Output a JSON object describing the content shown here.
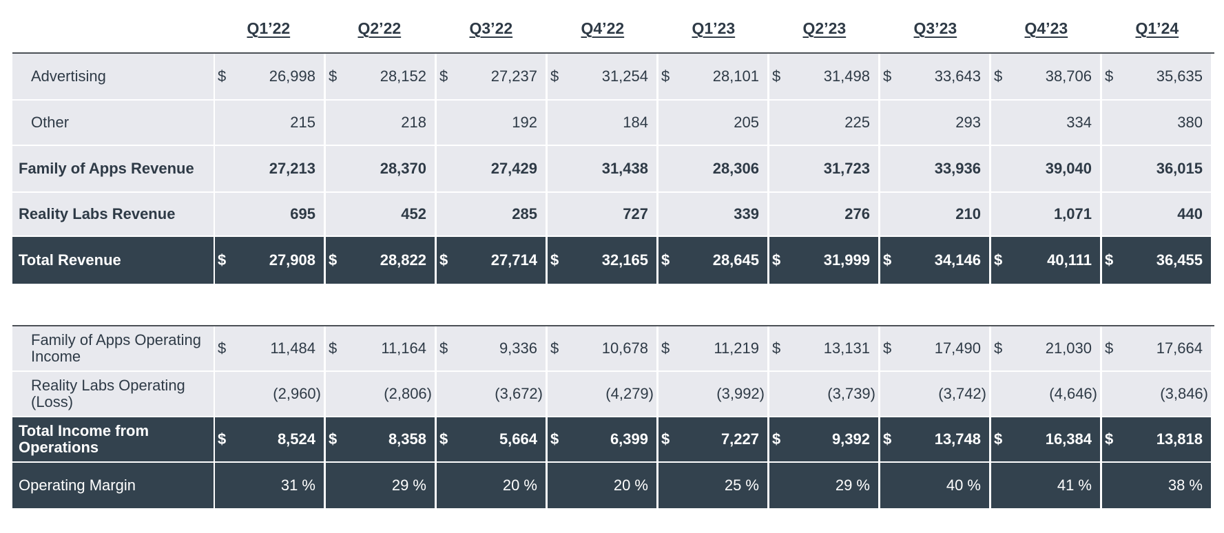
{
  "quarters": [
    "Q1’22",
    "Q2’22",
    "Q3’22",
    "Q4’22",
    "Q1’23",
    "Q2’23",
    "Q3’23",
    "Q4’23",
    "Q1’24"
  ],
  "currency_symbol": "$",
  "revenue_table": {
    "rows": [
      {
        "label": "Advertising",
        "show_currency": true,
        "values": [
          "26,998",
          "28,152",
          "27,237",
          "31,254",
          "28,101",
          "31,498",
          "33,643",
          "38,706",
          "35,635"
        ]
      },
      {
        "label": "Other",
        "show_currency": false,
        "values": [
          "215",
          "218",
          "192",
          "184",
          "205",
          "225",
          "293",
          "334",
          "380"
        ]
      },
      {
        "label": "Family of Apps Revenue",
        "show_currency": false,
        "values": [
          "27,213",
          "28,370",
          "27,429",
          "31,438",
          "28,306",
          "31,723",
          "33,936",
          "39,040",
          "36,015"
        ]
      },
      {
        "label": "Reality Labs Revenue",
        "show_currency": false,
        "values": [
          "695",
          "452",
          "285",
          "727",
          "339",
          "276",
          "210",
          "1,071",
          "440"
        ]
      },
      {
        "label": "Total Revenue",
        "show_currency": true,
        "values": [
          "27,908",
          "28,822",
          "27,714",
          "32,165",
          "28,645",
          "31,999",
          "34,146",
          "40,111",
          "36,455"
        ]
      }
    ]
  },
  "income_table": {
    "rows": [
      {
        "label": "Family of Apps Operating Income",
        "show_currency": true,
        "values": [
          "11,484",
          "11,164",
          "9,336",
          "10,678",
          "11,219",
          "13,131",
          "17,490",
          "21,030",
          "17,664"
        ]
      },
      {
        "label": "Reality Labs Operating (Loss)",
        "show_currency": false,
        "values": [
          "(2,960)",
          "(2,806)",
          "(3,672)",
          "(4,279)",
          "(3,992)",
          "(3,739)",
          "(3,742)",
          "(4,646)",
          "(3,846)"
        ]
      },
      {
        "label": "Total Income from Operations",
        "show_currency": true,
        "values": [
          "8,524",
          "8,358",
          "5,664",
          "6,399",
          "7,227",
          "9,392",
          "13,748",
          "16,384",
          "13,818"
        ]
      },
      {
        "label": "Operating Margin",
        "show_currency": false,
        "values": [
          "31 %",
          "29 %",
          "20 %",
          "20 %",
          "25 %",
          "29 %",
          "40 %",
          "41 %",
          "38 %"
        ]
      }
    ]
  },
  "colors": {
    "dark_row": "#33424e",
    "light_row": "#e8e9ee",
    "text": "#2e3a46"
  }
}
